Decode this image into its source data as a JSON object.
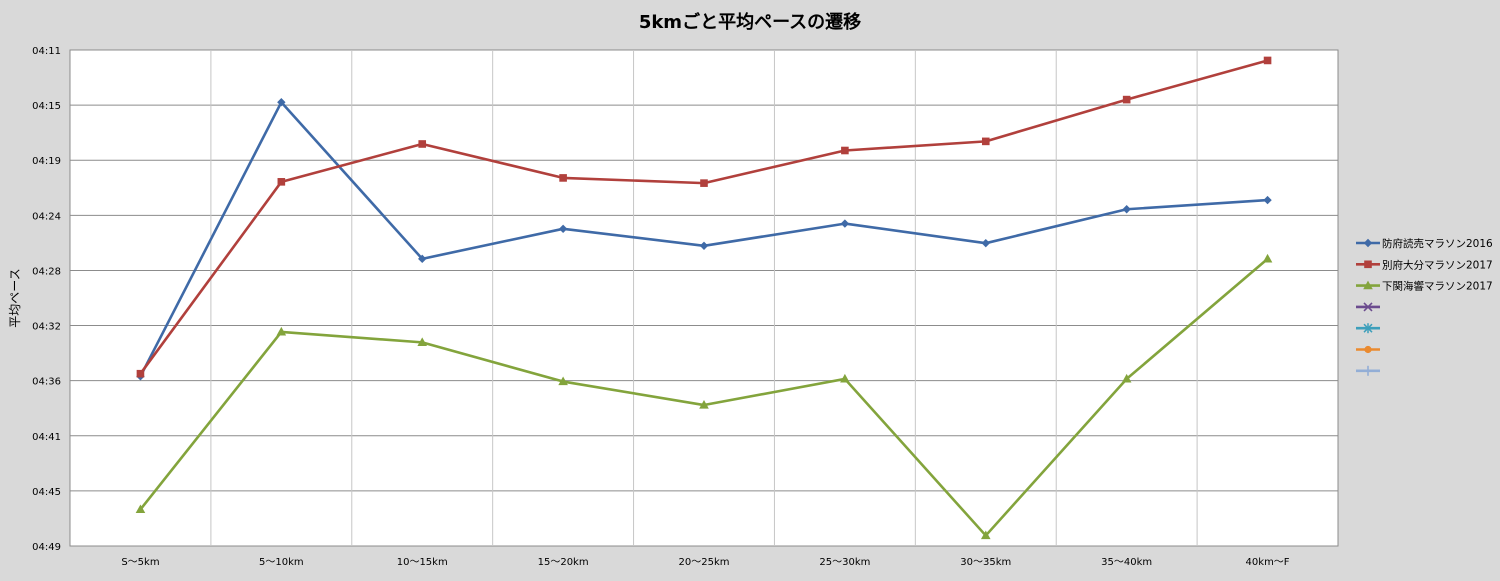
{
  "chart_data": {
    "type": "line",
    "title": "5kmごと平均ペースの遷移",
    "xlabel": "",
    "ylabel": "平均ペース",
    "categories": [
      "S〜5km",
      "5〜10km",
      "10〜15km",
      "15〜20km",
      "20〜25km",
      "25〜30km",
      "30〜35km",
      "35〜40km",
      "40km〜F"
    ],
    "y_tick_labels": [
      "04:11",
      "04:15",
      "04:19",
      "04:24",
      "04:28",
      "04:32",
      "04:36",
      "04:41",
      "04:45",
      "04:49"
    ],
    "y_tick_seconds": [
      251,
      255,
      259,
      264,
      268,
      272,
      276,
      281,
      285,
      289
    ],
    "ylim_seconds": [
      251,
      289
    ],
    "y_reversed": true,
    "grid": {
      "horizontal": true,
      "vertical": true
    },
    "legend_position": "right",
    "series": [
      {
        "name": "防府読売マラソン2016",
        "color": "#3f6aa7",
        "marker": "diamond",
        "values_seconds": [
          276,
          255,
          267,
          264.7,
          266,
          264.3,
          265.8,
          263.2,
          262.5
        ]
      },
      {
        "name": "別府大分マラソン2017",
        "color": "#b1403c",
        "marker": "square",
        "values_seconds": [
          275.8,
          261.1,
          258.2,
          260.8,
          261.2,
          258.7,
          258,
          254.8,
          251.8
        ]
      },
      {
        "name": "下関海響マラソン2017",
        "color": "#83a43c",
        "marker": "triangle",
        "values_seconds": [
          286.2,
          272.6,
          273.4,
          276.4,
          278.2,
          276.2,
          288.2,
          276.2,
          267
        ]
      },
      {
        "name": "",
        "color": "#6b4b8e",
        "marker": "x",
        "values_seconds": []
      },
      {
        "name": "",
        "color": "#3d9fbb",
        "marker": "star",
        "values_seconds": []
      },
      {
        "name": "",
        "color": "#ea8a2f",
        "marker": "circle",
        "values_seconds": []
      },
      {
        "name": "",
        "color": "#93aed6",
        "marker": "plus",
        "values_seconds": []
      }
    ]
  }
}
